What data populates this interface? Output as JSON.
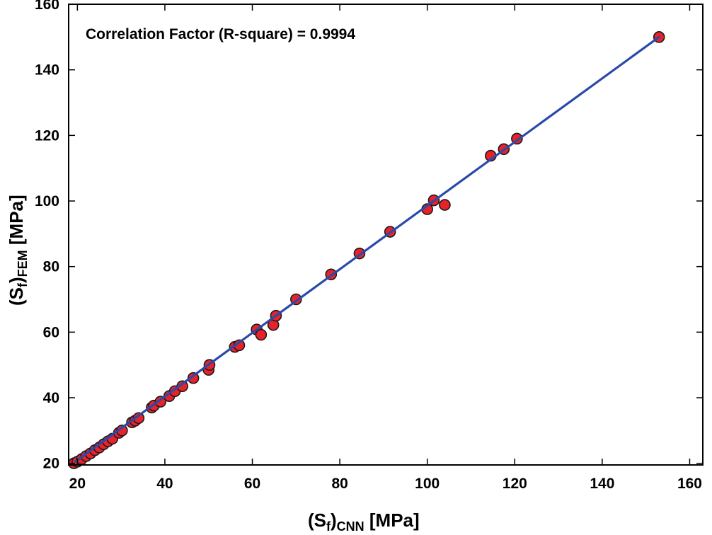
{
  "chart_data": {
    "type": "scatter",
    "title": "",
    "annotation": "Correlation Factor (R-square) = 0.9994",
    "xlabel": {
      "main": "(S",
      "sub1": "f",
      "mid": ")",
      "sub2": "CNN",
      "unit": " [MPa]"
    },
    "ylabel": {
      "main": "(S",
      "sub1": "f",
      "mid": ")",
      "sub2": "FEM",
      "unit": " [MPa]"
    },
    "xlim": [
      18,
      163
    ],
    "ylim": [
      19.5,
      160
    ],
    "xticks": [
      "20",
      "40",
      "60",
      "80",
      "100",
      "120",
      "140",
      "160"
    ],
    "yticks": [
      "20",
      "40",
      "60",
      "80",
      "100",
      "120",
      "140",
      "160"
    ],
    "grid": false,
    "colors": {
      "marker_fill": "#e8222b",
      "marker_edge": "#1a1a1a",
      "line": "#2b4aa8"
    },
    "fit_line": {
      "name": "fit",
      "x": [
        19.5,
        153
      ],
      "y": [
        20.5,
        150
      ]
    },
    "series": [
      {
        "name": "samples",
        "points": [
          [
            19.2,
            20.0
          ],
          [
            20.0,
            20.5
          ],
          [
            21.0,
            21.3
          ],
          [
            22.0,
            22.2
          ],
          [
            23.0,
            23.0
          ],
          [
            24.0,
            24.0
          ],
          [
            25.0,
            24.8
          ],
          [
            26.0,
            25.8
          ],
          [
            27.0,
            26.7
          ],
          [
            28.0,
            27.5
          ],
          [
            29.5,
            29.3
          ],
          [
            30.2,
            30.0
          ],
          [
            32.5,
            32.5
          ],
          [
            33.2,
            33.0
          ],
          [
            34.0,
            33.8
          ],
          [
            37.0,
            37.0
          ],
          [
            37.5,
            37.6
          ],
          [
            39.0,
            38.8
          ],
          [
            41.0,
            40.5
          ],
          [
            42.3,
            42.0
          ],
          [
            44.0,
            43.5
          ],
          [
            46.5,
            46.0
          ],
          [
            50.0,
            48.5
          ],
          [
            50.2,
            50.0
          ],
          [
            56.0,
            55.5
          ],
          [
            57.0,
            56.0
          ],
          [
            61.0,
            60.8
          ],
          [
            62.0,
            59.2
          ],
          [
            64.8,
            62.2
          ],
          [
            65.4,
            65.0
          ],
          [
            70.0,
            70.0
          ],
          [
            78.0,
            77.6
          ],
          [
            84.5,
            84.0
          ],
          [
            91.5,
            90.6
          ],
          [
            100.0,
            97.5
          ],
          [
            101.5,
            100.2
          ],
          [
            104.0,
            98.8
          ],
          [
            114.5,
            113.8
          ],
          [
            117.5,
            115.8
          ],
          [
            120.5,
            119.0
          ],
          [
            153.0,
            150.0
          ]
        ]
      }
    ]
  }
}
